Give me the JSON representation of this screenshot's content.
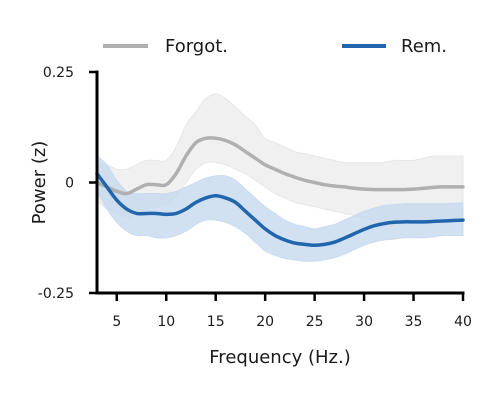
{
  "chart_data": {
    "type": "line",
    "xlabel": "Frequency (Hz.)",
    "ylabel": "Power (z)",
    "xlim": [
      3,
      40
    ],
    "ylim": [
      -0.25,
      0.25
    ],
    "x_ticks": [
      5,
      10,
      15,
      20,
      25,
      30,
      35,
      40
    ],
    "x_tick_labels": [
      "5",
      "10",
      "15",
      "20",
      "25",
      "30",
      "35",
      "40"
    ],
    "y_ticks": [
      -0.25,
      0,
      0.25
    ],
    "y_tick_labels": [
      "-0.25",
      "0",
      "0.25"
    ],
    "grid": false,
    "legend_position": "top",
    "series": [
      {
        "name": "Forgot.",
        "color": "#b0b0b0",
        "band_color": "#e4e4e4",
        "x": [
          3,
          4,
          5,
          6,
          7,
          8,
          9,
          10,
          11,
          12,
          13,
          14,
          15,
          16,
          17,
          18,
          19,
          20,
          21,
          22,
          23,
          24,
          25,
          26,
          27,
          28,
          29,
          30,
          31,
          32,
          33,
          34,
          35,
          36,
          37,
          38,
          39,
          40
        ],
        "values": [
          0.0,
          -0.01,
          -0.02,
          -0.025,
          -0.015,
          -0.005,
          -0.005,
          -0.005,
          0.02,
          0.06,
          0.09,
          0.1,
          0.1,
          0.095,
          0.085,
          0.07,
          0.055,
          0.04,
          0.03,
          0.02,
          0.012,
          0.005,
          0.0,
          -0.005,
          -0.008,
          -0.01,
          -0.013,
          -0.015,
          -0.016,
          -0.016,
          -0.016,
          -0.016,
          -0.015,
          -0.013,
          -0.011,
          -0.01,
          -0.01,
          -0.01
        ],
        "lower": [
          -0.04,
          -0.06,
          -0.07,
          -0.08,
          -0.07,
          -0.06,
          -0.055,
          -0.05,
          -0.03,
          0.0,
          0.03,
          0.045,
          0.045,
          0.04,
          0.03,
          0.02,
          0.005,
          -0.01,
          -0.025,
          -0.035,
          -0.045,
          -0.05,
          -0.055,
          -0.06,
          -0.065,
          -0.07,
          -0.075,
          -0.08,
          -0.085,
          -0.085,
          -0.085,
          -0.085,
          -0.085,
          -0.085,
          -0.08,
          -0.08,
          -0.08,
          -0.08
        ],
        "upper": [
          0.04,
          0.04,
          0.03,
          0.03,
          0.04,
          0.05,
          0.05,
          0.05,
          0.08,
          0.13,
          0.16,
          0.19,
          0.2,
          0.19,
          0.17,
          0.15,
          0.13,
          0.1,
          0.09,
          0.08,
          0.07,
          0.065,
          0.06,
          0.055,
          0.05,
          0.045,
          0.045,
          0.045,
          0.045,
          0.045,
          0.05,
          0.05,
          0.05,
          0.055,
          0.06,
          0.06,
          0.06,
          0.06
        ]
      },
      {
        "name": "Rem.",
        "color": "#2166ac",
        "band_color": "#c6d9ef",
        "x": [
          3,
          4,
          5,
          6,
          7,
          8,
          9,
          10,
          11,
          12,
          13,
          14,
          15,
          16,
          17,
          18,
          19,
          20,
          21,
          22,
          23,
          24,
          25,
          26,
          27,
          28,
          29,
          30,
          31,
          32,
          33,
          34,
          35,
          36,
          37,
          38,
          39,
          40
        ],
        "values": [
          0.02,
          -0.01,
          -0.04,
          -0.06,
          -0.07,
          -0.07,
          -0.07,
          -0.072,
          -0.07,
          -0.06,
          -0.045,
          -0.035,
          -0.03,
          -0.035,
          -0.045,
          -0.065,
          -0.085,
          -0.105,
          -0.12,
          -0.13,
          -0.137,
          -0.14,
          -0.142,
          -0.14,
          -0.135,
          -0.126,
          -0.116,
          -0.106,
          -0.098,
          -0.093,
          -0.09,
          -0.089,
          -0.089,
          -0.089,
          -0.088,
          -0.087,
          -0.086,
          -0.085
        ],
        "lower": [
          -0.02,
          -0.06,
          -0.09,
          -0.11,
          -0.12,
          -0.12,
          -0.125,
          -0.125,
          -0.12,
          -0.11,
          -0.095,
          -0.085,
          -0.085,
          -0.09,
          -0.1,
          -0.115,
          -0.135,
          -0.155,
          -0.165,
          -0.172,
          -0.175,
          -0.178,
          -0.178,
          -0.175,
          -0.17,
          -0.162,
          -0.152,
          -0.142,
          -0.135,
          -0.13,
          -0.128,
          -0.125,
          -0.125,
          -0.125,
          -0.123,
          -0.12,
          -0.12,
          -0.12
        ],
        "upper": [
          0.06,
          0.04,
          0.005,
          -0.02,
          -0.025,
          -0.025,
          -0.025,
          -0.025,
          -0.02,
          -0.01,
          0.0,
          0.01,
          0.015,
          0.015,
          0.005,
          -0.015,
          -0.035,
          -0.055,
          -0.07,
          -0.085,
          -0.095,
          -0.1,
          -0.105,
          -0.1,
          -0.095,
          -0.085,
          -0.075,
          -0.065,
          -0.058,
          -0.052,
          -0.05,
          -0.048,
          -0.048,
          -0.048,
          -0.048,
          -0.048,
          -0.047,
          -0.046
        ]
      }
    ]
  }
}
